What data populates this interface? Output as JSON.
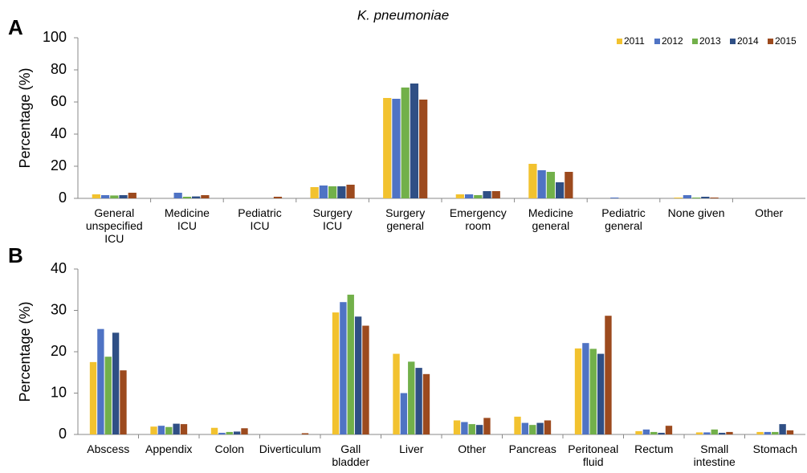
{
  "title": "K. pneumoniae",
  "chart_data": [
    {
      "type": "bar",
      "label": "A",
      "ylabel": "Percentage (%)",
      "categories": [
        "General\nunspecified\nICU",
        "Medicine\nICU",
        "Pediatric\nICU",
        "Surgery\nICU",
        "Surgery\ngeneral",
        "Emergency\nroom",
        "Medicine\ngeneral",
        "Pediatric\ngeneral",
        "None given",
        "Other"
      ],
      "series": [
        {
          "name": "2011",
          "color": "#f2c22f",
          "values": [
            2.5,
            0,
            0,
            7,
            62.5,
            2.5,
            21.5,
            0,
            0.5,
            0
          ]
        },
        {
          "name": "2012",
          "color": "#4f73c4",
          "values": [
            2,
            3.5,
            0,
            8,
            62,
            2.5,
            17.5,
            0.5,
            2,
            0
          ]
        },
        {
          "name": "2013",
          "color": "#72b04a",
          "values": [
            1.8,
            1,
            0,
            7.5,
            69,
            2,
            16.5,
            0,
            0.5,
            0
          ]
        },
        {
          "name": "2014",
          "color": "#2f4f85",
          "values": [
            2,
            1.2,
            0,
            7.5,
            71.5,
            4.5,
            10,
            0,
            1,
            0
          ]
        },
        {
          "name": "2015",
          "color": "#9c4a1e",
          "values": [
            3.5,
            2,
            1,
            8.5,
            61.5,
            4.5,
            16.5,
            0,
            0.5,
            0
          ]
        }
      ],
      "ylim": [
        0,
        100
      ],
      "yticks": [
        0,
        20,
        40,
        60,
        80,
        100
      ],
      "legend": "upper right"
    },
    {
      "type": "bar",
      "label": "B",
      "ylabel": "Percentage (%)",
      "categories": [
        "Abscess",
        "Appendix",
        "Colon",
        "Diverticulum",
        "Gall\nbladder",
        "Liver",
        "Other",
        "Pancreas",
        "Peritoneal\nfluid",
        "Rectum",
        "Small\nintestine",
        "Stomach"
      ],
      "series": [
        {
          "color": "#f2c22f",
          "values": [
            17.5,
            1.9,
            1.6,
            0,
            29.5,
            19.5,
            3.4,
            4.3,
            20.8,
            0.8,
            0.5,
            0.6
          ]
        },
        {
          "color": "#4f73c4",
          "values": [
            25.5,
            2.1,
            0.4,
            0,
            32,
            10,
            3,
            2.8,
            22.1,
            1.2,
            0.5,
            0.6
          ]
        },
        {
          "color": "#72b04a",
          "values": [
            18.8,
            1.8,
            0.6,
            0,
            33.8,
            17.6,
            2.5,
            2.3,
            20.7,
            0.6,
            1.2,
            0.6
          ]
        },
        {
          "color": "#2f4f85",
          "values": [
            24.6,
            2.6,
            0.7,
            0,
            28.5,
            16.1,
            2.3,
            2.8,
            19.5,
            0.4,
            0.4,
            2.5
          ]
        },
        {
          "color": "#9c4a1e",
          "values": [
            15.5,
            2.5,
            1.5,
            0.3,
            26.3,
            14.6,
            4,
            3.4,
            28.7,
            2.1,
            0.6,
            1
          ]
        }
      ],
      "ylim": [
        0,
        40
      ],
      "yticks": [
        0,
        10,
        20,
        30,
        40
      ]
    }
  ]
}
